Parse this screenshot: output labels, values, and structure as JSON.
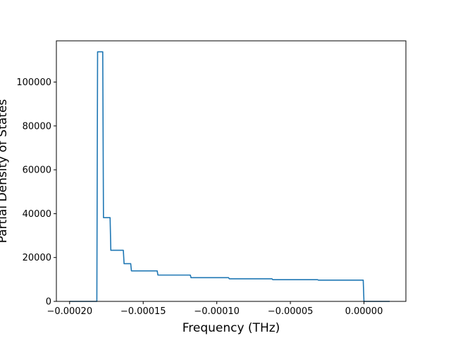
{
  "chart_data": {
    "type": "line",
    "xlabel": "Frequency (THz)",
    "ylabel": "Partial Density of States",
    "xlim": [
      -0.000209,
      2.85e-05
    ],
    "ylim": [
      0,
      118800
    ],
    "x_ticks": [
      -0.0002,
      -0.00015,
      -0.0001,
      -5e-05,
      0.0
    ],
    "x_tick_labels": [
      "−0.00020",
      "−0.00015",
      "−0.00010",
      "−0.00005",
      "0.00000"
    ],
    "y_ticks": [
      0,
      20000,
      40000,
      60000,
      80000,
      100000
    ],
    "y_tick_labels": [
      "0",
      "20000",
      "40000",
      "60000",
      "80000",
      "100000"
    ],
    "grid": false,
    "colors": {
      "line": "#1f77b4",
      "frame": "#000000"
    },
    "series": [
      {
        "x": [
          -0.0002,
          -0.0001815,
          -0.000181,
          -0.0001775,
          -0.000177,
          -0.0001725,
          -0.000172,
          -0.0001635,
          -0.000163,
          -0.0001585,
          -0.000158,
          -0.0001405,
          -0.00014,
          -0.000118,
          -0.0001175,
          -9.2e-05,
          -9.15e-05,
          -6.25e-05,
          -6.2e-05,
          -3.15e-05,
          -3.1e-05,
          -5e-07,
          0.0,
          1.75e-05
        ],
        "y": [
          0,
          0,
          113800,
          113800,
          38200,
          38200,
          23300,
          23300,
          17200,
          17200,
          13900,
          13900,
          12000,
          12000,
          10800,
          10800,
          10300,
          10300,
          9900,
          9900,
          9700,
          9700,
          0,
          0
        ]
      }
    ]
  }
}
